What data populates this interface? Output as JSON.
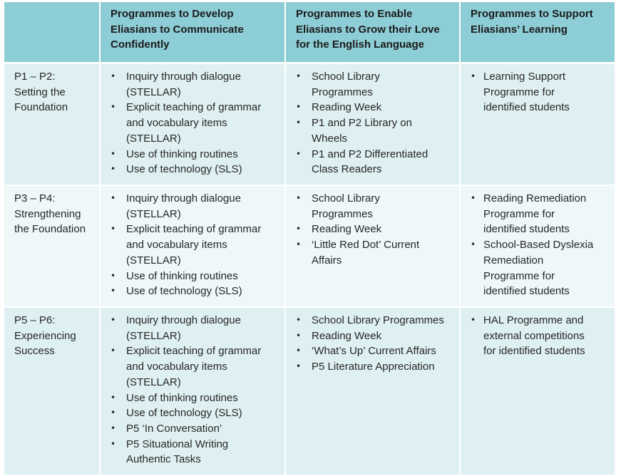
{
  "headers": [
    "",
    "Programmes to Develop Eliasians to Communicate Confidently",
    "Programmes to Enable Eliasians to Grow their Love for the English Language",
    "Programmes to Support Eliasians’ Learning"
  ],
  "rows": [
    {
      "stage": "P1 – P2: Setting the Foundation",
      "communicate": [
        "Inquiry through dialogue (STELLAR)",
        "Explicit teaching of grammar and vocabulary items (STELLAR)",
        "Use of thinking routines",
        "Use of technology (SLS)"
      ],
      "love": [
        "School Library Programmes",
        "Reading Week",
        "P1 and P2 Library on Wheels",
        "P1 and P2 Differentiated Class Readers"
      ],
      "support": [
        "Learning Support Programme for identified students"
      ]
    },
    {
      "stage": "P3 – P4: Strengthening the Foundation",
      "communicate": [
        "Inquiry through dialogue (STELLAR)",
        "Explicit teaching of grammar and vocabulary items (STELLAR)",
        "Use of thinking routines",
        "Use of technology (SLS)"
      ],
      "love": [
        "School Library Programmes",
        "Reading Week",
        "‘Little Red Dot’ Current Affairs"
      ],
      "support": [
        "Reading Remediation Programme for identified students",
        "School-Based Dyslexia Remediation Programme for identified students"
      ]
    },
    {
      "stage": "P5 – P6: Experiencing Success",
      "communicate": [
        "Inquiry through dialogue (STELLAR)",
        "Explicit teaching of grammar and vocabulary items (STELLAR)",
        "Use of thinking routines",
        "Use of technology (SLS)",
        "P5 ‘In Conversation’",
        "P5 Situational Writing Authentic Tasks"
      ],
      "love": [
        "School Library Programmes",
        "Reading Week",
        " ‘What’s Up’ Current Affairs",
        "P5 Literature Appreciation"
      ],
      "support": [
        "HAL Programme and external competitions for identified students"
      ]
    }
  ]
}
